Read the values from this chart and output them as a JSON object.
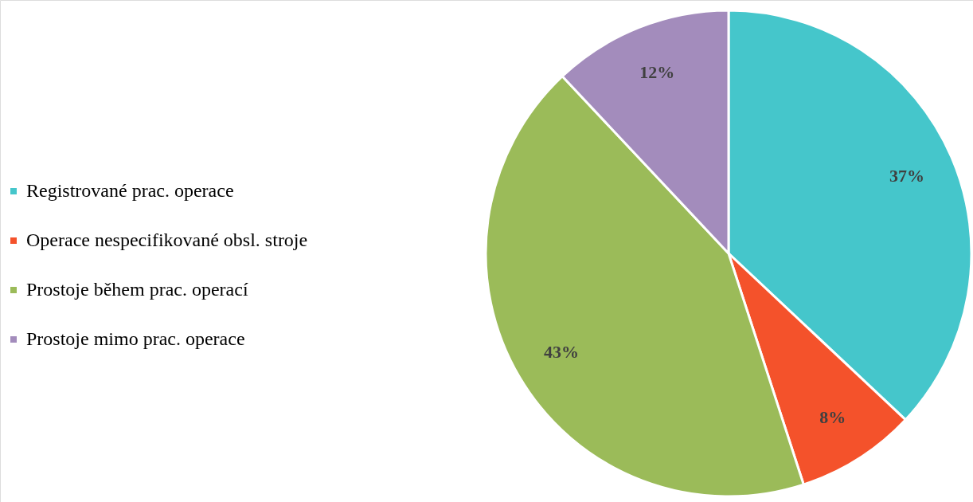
{
  "chart_data": {
    "type": "pie",
    "categories": [
      "Registrované prac. operace",
      "Operace nespecifikované obsl. stroje",
      "Prostoje během prac. operací",
      "Prostoje mimo prac. operace"
    ],
    "values": [
      37,
      8,
      43,
      12
    ],
    "colors": [
      "#45c6cb",
      "#f4522b",
      "#9bbb59",
      "#a38cbc"
    ],
    "value_labels": [
      "37%",
      "8%",
      "43%",
      "12%"
    ],
    "legend": "left"
  }
}
